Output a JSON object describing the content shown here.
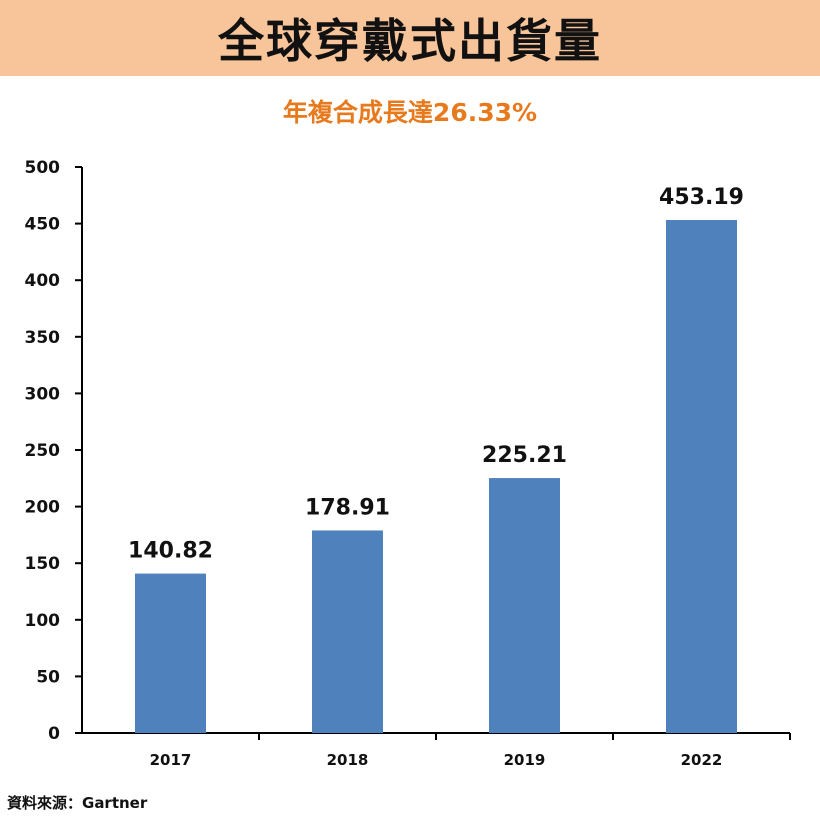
{
  "header": {
    "title": "全球穿戴式出貨量",
    "subtitle": "年複合成長達26.33%"
  },
  "footer": {
    "source": "資料來源：Gartner"
  },
  "colors": {
    "header_bg": "#f8c49a",
    "subtitle": "#e87a1e",
    "bar": "#4f81bd"
  },
  "chart_data": {
    "type": "bar",
    "title": "全球穿戴式出貨量",
    "subtitle": "年複合成長達26.33%",
    "categories": [
      "2017",
      "2018",
      "2019",
      "2022"
    ],
    "values": [
      140.82,
      178.91,
      225.21,
      453.19
    ],
    "value_labels": [
      "140.82",
      "178.91",
      "225.21",
      "453.19"
    ],
    "ylim": [
      0,
      500
    ],
    "yticks": [
      0,
      50,
      100,
      150,
      200,
      250,
      300,
      350,
      400,
      450,
      500
    ],
    "grid": false,
    "legend": "none"
  }
}
